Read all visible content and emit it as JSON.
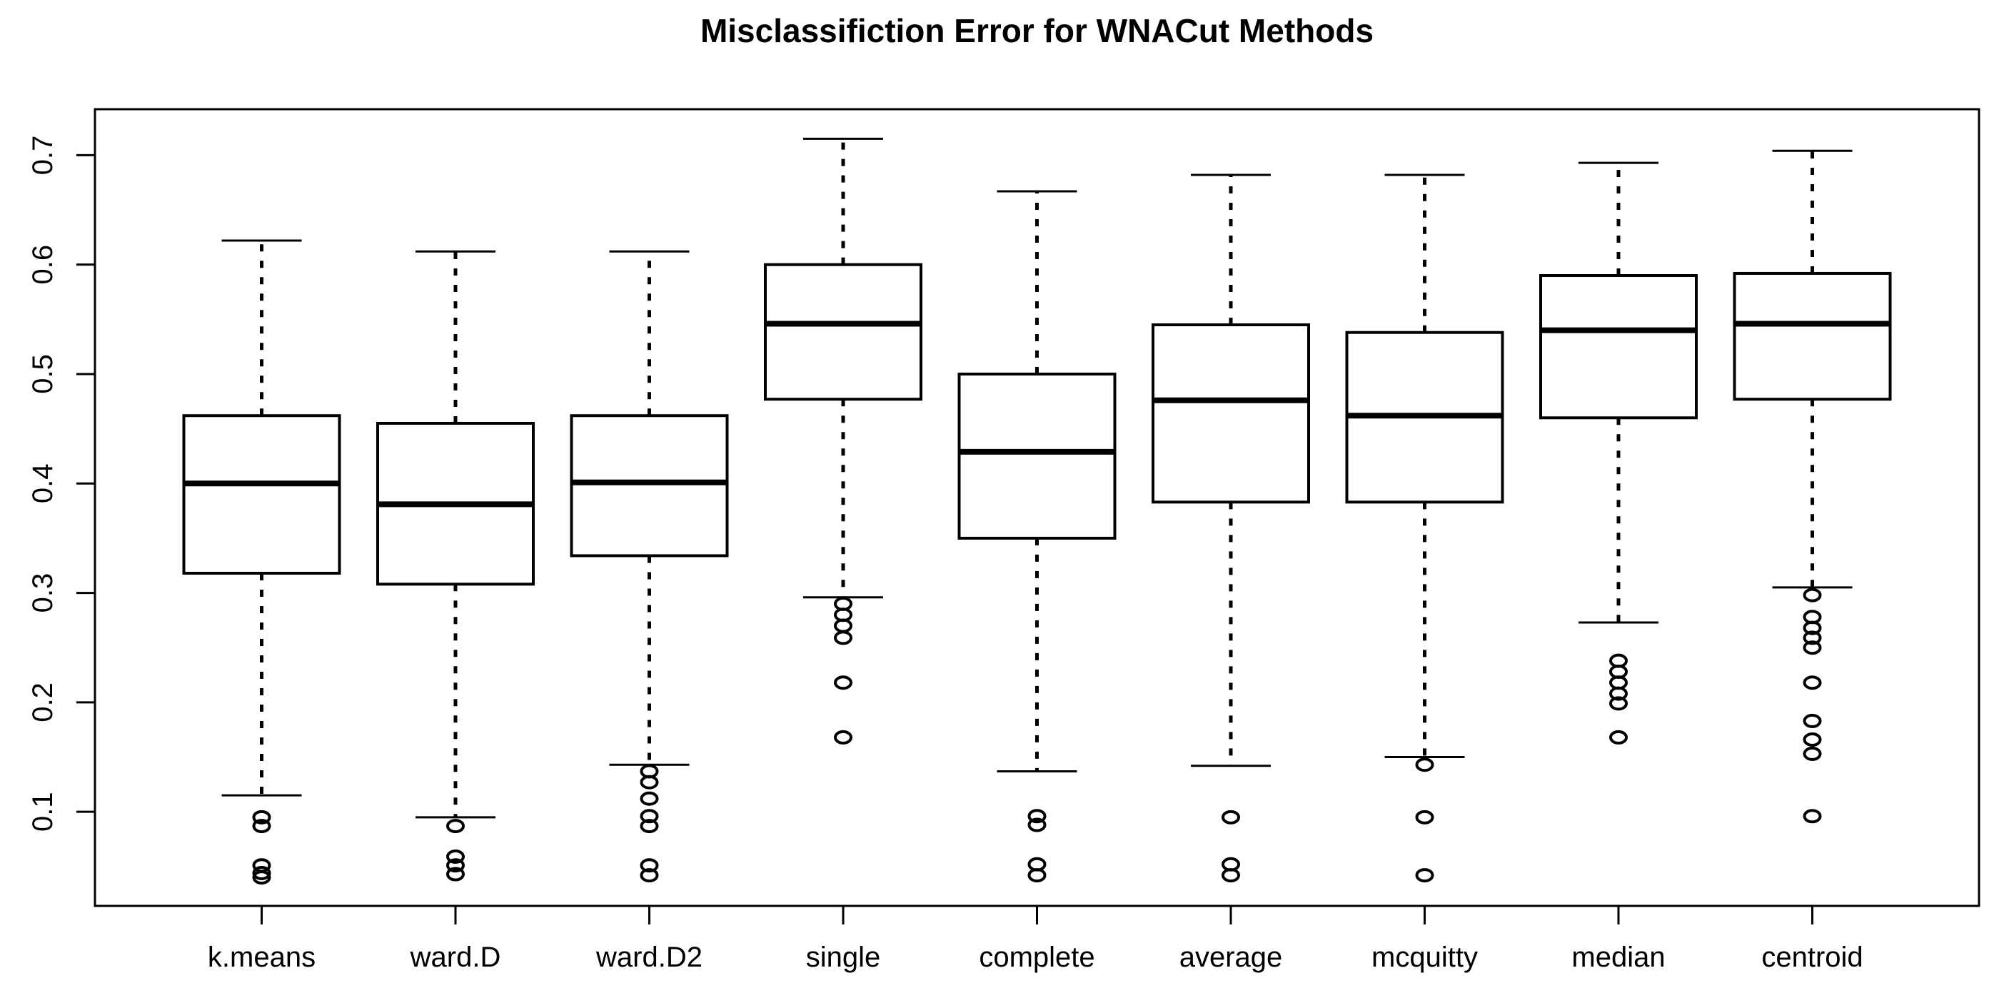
{
  "chart_data": {
    "type": "boxplot",
    "title": "Misclassifiction Error for WNACut Methods",
    "xlabel": "",
    "ylabel": "",
    "grid": false,
    "framed": true,
    "ylim": [
      0.014,
      0.742
    ],
    "y_ticks": [
      0.1,
      0.2,
      0.3,
      0.4,
      0.5,
      0.6,
      0.7
    ],
    "y_tick_labels": [
      "0.1",
      "0.2",
      "0.3",
      "0.4",
      "0.5",
      "0.6",
      "0.7"
    ],
    "categories": [
      "k.means",
      "ward.D",
      "ward.D2",
      "single",
      "complete",
      "average",
      "mcquitty",
      "median",
      "centroid"
    ],
    "series": [
      {
        "name": "k.means",
        "whisker_low": 0.115,
        "q1": 0.318,
        "median": 0.4,
        "q3": 0.462,
        "whisker_high": 0.622,
        "outliers": [
          0.095,
          0.087,
          0.051,
          0.044,
          0.04
        ]
      },
      {
        "name": "ward.D",
        "whisker_low": 0.095,
        "q1": 0.308,
        "median": 0.381,
        "q3": 0.455,
        "whisker_high": 0.612,
        "outliers": [
          0.087,
          0.059,
          0.051,
          0.043
        ]
      },
      {
        "name": "ward.D2",
        "whisker_low": 0.143,
        "q1": 0.334,
        "median": 0.401,
        "q3": 0.462,
        "whisker_high": 0.612,
        "outliers": [
          0.137,
          0.127,
          0.112,
          0.096,
          0.087,
          0.051,
          0.042
        ]
      },
      {
        "name": "single",
        "whisker_low": 0.296,
        "q1": 0.477,
        "median": 0.546,
        "q3": 0.6,
        "whisker_high": 0.715,
        "outliers": [
          0.29,
          0.28,
          0.27,
          0.259,
          0.218,
          0.168
        ]
      },
      {
        "name": "complete",
        "whisker_low": 0.137,
        "q1": 0.35,
        "median": 0.429,
        "q3": 0.5,
        "whisker_high": 0.667,
        "outliers": [
          0.096,
          0.088,
          0.052,
          0.042
        ]
      },
      {
        "name": "average",
        "whisker_low": 0.142,
        "q1": 0.383,
        "median": 0.476,
        "q3": 0.545,
        "whisker_high": 0.682,
        "outliers": [
          0.095,
          0.052,
          0.042
        ]
      },
      {
        "name": "mcquitty",
        "whisker_low": 0.15,
        "q1": 0.383,
        "median": 0.462,
        "q3": 0.538,
        "whisker_high": 0.682,
        "outliers": [
          0.143,
          0.095,
          0.042
        ]
      },
      {
        "name": "median",
        "whisker_low": 0.273,
        "q1": 0.46,
        "median": 0.54,
        "q3": 0.59,
        "whisker_high": 0.693,
        "outliers": [
          0.238,
          0.228,
          0.218,
          0.208,
          0.199,
          0.168
        ]
      },
      {
        "name": "centroid",
        "whisker_low": 0.305,
        "q1": 0.477,
        "median": 0.546,
        "q3": 0.592,
        "whisker_high": 0.704,
        "outliers": [
          0.298,
          0.278,
          0.268,
          0.259,
          0.25,
          0.218,
          0.183,
          0.166,
          0.153,
          0.096
        ]
      }
    ],
    "colors": {
      "stroke": "#000000",
      "fill": "#ffffff",
      "background": "#ffffff"
    },
    "legend": null
  }
}
